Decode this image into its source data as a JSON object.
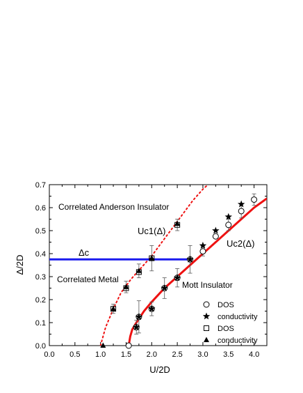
{
  "chart_data": {
    "type": "scatter",
    "xlabel": "U/2D",
    "ylabel": "Δ/2D",
    "xlim": [
      0.0,
      4.25
    ],
    "ylim": [
      0.0,
      0.7
    ],
    "x_ticks": [
      "0.0",
      "0.5",
      "1.0",
      "1.5",
      "2.0",
      "2.5",
      "3.0",
      "3.5",
      "4.0"
    ],
    "y_ticks": [
      "0.0",
      "0.1",
      "0.2",
      "0.3",
      "0.4",
      "0.5",
      "0.6",
      "0.7"
    ],
    "grid": false,
    "legend_position": "lower-right",
    "region_labels": {
      "anderson": "Correlated Anderson Insulator",
      "metal": "Correlated Metal",
      "mott": "Mott Insulator"
    },
    "curve_labels": {
      "uc1": "Uc1(Δ)",
      "uc2": "Uc2(Δ)",
      "delta_c": "Δc"
    },
    "colors": {
      "uc1_curve": "#ee1111",
      "uc2_curve": "#ee1111",
      "delta_c_line": "#1a1aee",
      "markers": "#000000"
    },
    "uc1_curve": {
      "style": "dotted",
      "points": [
        [
          1.0,
          0.0
        ],
        [
          1.1,
          0.08
        ],
        [
          1.25,
          0.16
        ],
        [
          1.4,
          0.23
        ],
        [
          1.6,
          0.29
        ],
        [
          1.8,
          0.34
        ],
        [
          2.0,
          0.39
        ],
        [
          2.2,
          0.45
        ],
        [
          2.4,
          0.51
        ],
        [
          2.6,
          0.57
        ],
        [
          2.8,
          0.63
        ],
        [
          3.0,
          0.68
        ],
        [
          3.1,
          0.7
        ]
      ]
    },
    "uc2_curve": {
      "style": "solid",
      "points": [
        [
          1.55,
          0.0
        ],
        [
          1.58,
          0.04
        ],
        [
          1.62,
          0.07
        ],
        [
          1.7,
          0.1
        ],
        [
          1.85,
          0.15
        ],
        [
          2.0,
          0.19
        ],
        [
          2.25,
          0.25
        ],
        [
          2.5,
          0.3
        ],
        [
          2.75,
          0.35
        ],
        [
          3.0,
          0.4
        ],
        [
          3.25,
          0.45
        ],
        [
          3.5,
          0.5
        ],
        [
          3.75,
          0.55
        ],
        [
          4.0,
          0.6
        ],
        [
          4.25,
          0.64
        ]
      ]
    },
    "delta_c_line": {
      "y": 0.375,
      "x": [
        0.0,
        2.75
      ]
    },
    "series": [
      {
        "name": "DOS",
        "marker": "open-circle",
        "points": [
          [
            1.55,
            0.0
          ],
          [
            1.7,
            0.08
          ],
          [
            1.75,
            0.125
          ],
          [
            2.0,
            0.16
          ],
          [
            2.25,
            0.25
          ],
          [
            2.5,
            0.295
          ],
          [
            2.75,
            0.375
          ],
          [
            3.0,
            0.41
          ],
          [
            3.25,
            0.475
          ],
          [
            3.5,
            0.525
          ],
          [
            3.75,
            0.585
          ],
          [
            4.0,
            0.635
          ]
        ]
      },
      {
        "name": "conductivity",
        "marker": "star",
        "points": [
          [
            1.7,
            0.08
          ],
          [
            1.75,
            0.125
          ],
          [
            2.0,
            0.16
          ],
          [
            2.25,
            0.25
          ],
          [
            2.5,
            0.295
          ],
          [
            2.75,
            0.375
          ],
          [
            3.0,
            0.435
          ],
          [
            3.25,
            0.5
          ],
          [
            3.5,
            0.56
          ],
          [
            3.75,
            0.615
          ]
        ]
      },
      {
        "name": "DOS",
        "marker": "open-square",
        "points": [
          [
            1.25,
            0.16
          ],
          [
            1.5,
            0.25
          ],
          [
            1.75,
            0.32
          ],
          [
            2.0,
            0.38
          ],
          [
            2.5,
            0.525
          ]
        ]
      },
      {
        "name": "conductivity",
        "marker": "triangle",
        "points": [
          [
            1.05,
            0.0
          ],
          [
            1.25,
            0.16
          ],
          [
            1.5,
            0.255
          ],
          [
            1.75,
            0.325
          ],
          [
            2.0,
            0.38
          ],
          [
            2.5,
            0.53
          ]
        ]
      }
    ],
    "error_bars": [
      [
        1.25,
        0.16,
        0.02
      ],
      [
        1.5,
        0.255,
        0.025
      ],
      [
        1.75,
        0.325,
        0.03
      ],
      [
        2.0,
        0.38,
        0.055
      ],
      [
        2.5,
        0.525,
        0.025
      ],
      [
        1.7,
        0.08,
        0.03
      ],
      [
        1.75,
        0.125,
        0.07
      ],
      [
        2.0,
        0.16,
        0.03
      ],
      [
        2.25,
        0.25,
        0.045
      ],
      [
        2.5,
        0.295,
        0.04
      ],
      [
        2.75,
        0.375,
        0.06
      ],
      [
        3.0,
        0.41,
        0.02
      ],
      [
        3.5,
        0.525,
        0.025
      ],
      [
        3.75,
        0.585,
        0.03
      ],
      [
        4.0,
        0.635,
        0.025
      ]
    ]
  }
}
